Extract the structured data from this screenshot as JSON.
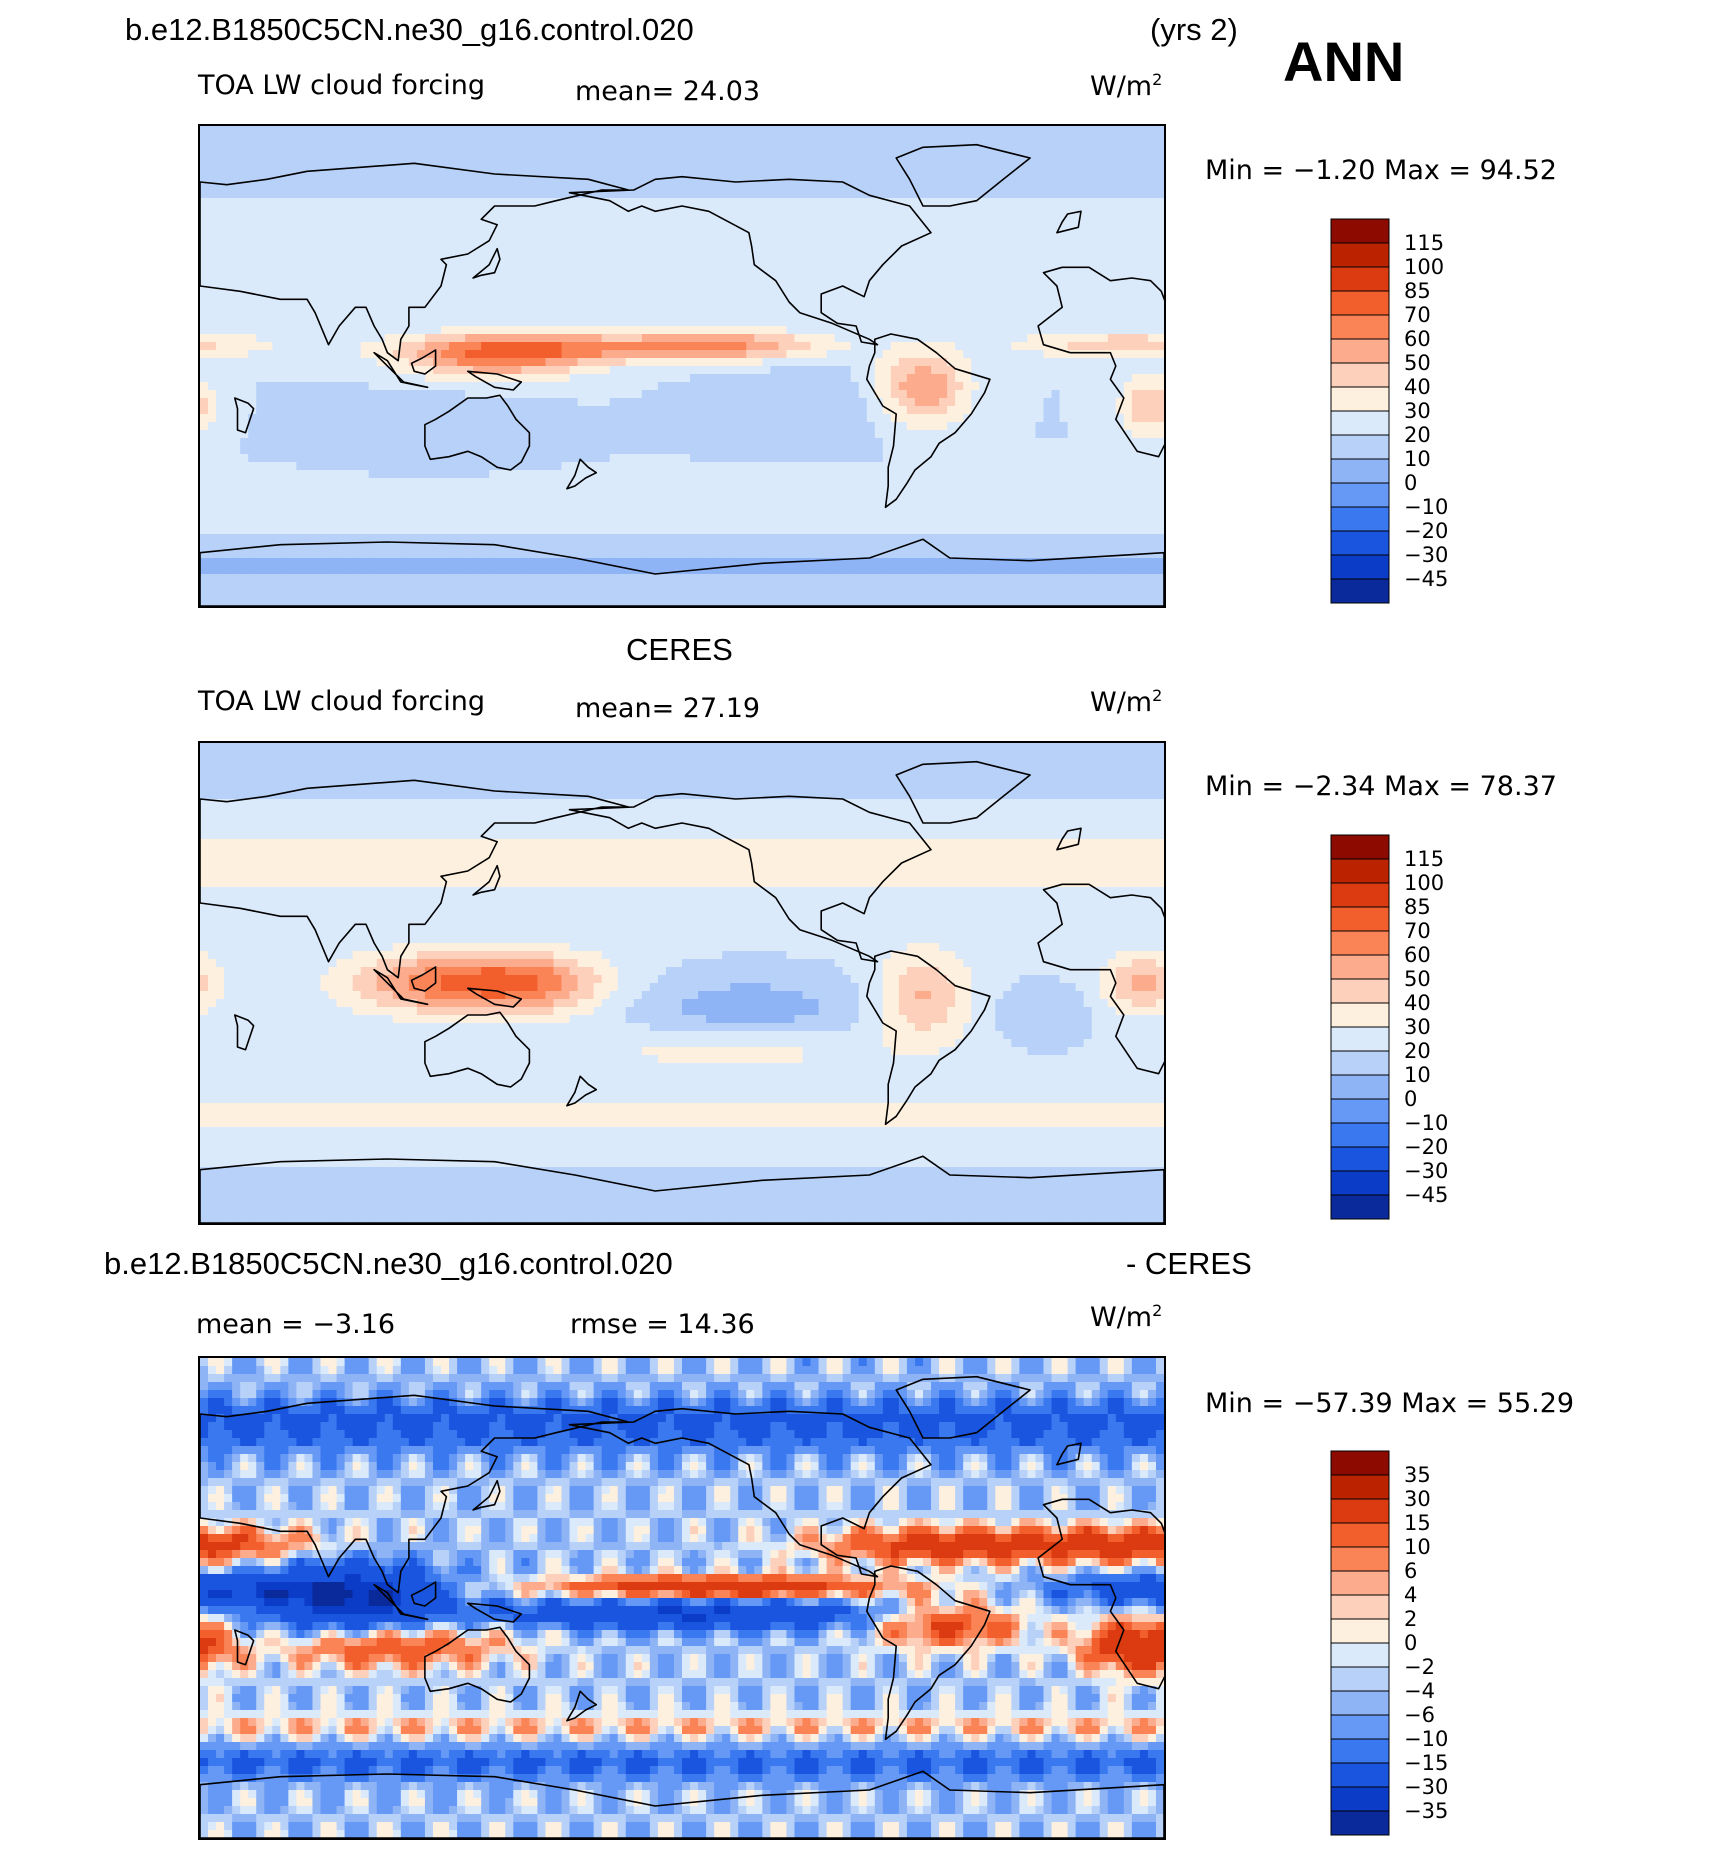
{
  "header": {
    "case_title": "b.e12.B1850C5CN.ne30_g16.control.020",
    "years": "(yrs 2)",
    "season": "ANN"
  },
  "panels": [
    {
      "id": "model",
      "title": "",
      "left_label": "TOA LW cloud forcing",
      "center_label": "mean=  24.03",
      "units": "W/m",
      "units_sup": "2",
      "minmax": "Min =   −1.20 Max =   94.52",
      "levels": [
        "115",
        "100",
        "85",
        "70",
        "60",
        "50",
        "40",
        "30",
        "20",
        "10",
        "0",
        "−10",
        "−20",
        "−30",
        "−45"
      ],
      "colors": [
        "#8c0a00",
        "#bb2300",
        "#dc3a10",
        "#f25e2c",
        "#fb8457",
        "#fcac8d",
        "#fdd0bb",
        "#fef0df",
        "#dbeafb",
        "#b7d1f8",
        "#8fb4f6",
        "#6699f5",
        "#3a78f0",
        "#1a55e0",
        "#0b3cc7",
        "#0a2a9b"
      ]
    },
    {
      "id": "obs",
      "title": "CERES",
      "left_label": "TOA LW cloud forcing",
      "center_label": "mean=  27.19",
      "units": "W/m",
      "units_sup": "2",
      "minmax": "Min =   −2.34 Max =   78.37",
      "levels": [
        "115",
        "100",
        "85",
        "70",
        "60",
        "50",
        "40",
        "30",
        "20",
        "10",
        "0",
        "−10",
        "−20",
        "−30",
        "−45"
      ],
      "colors": [
        "#8c0a00",
        "#bb2300",
        "#dc3a10",
        "#f25e2c",
        "#fb8457",
        "#fcac8d",
        "#fdd0bb",
        "#fef0df",
        "#dbeafb",
        "#b7d1f8",
        "#8fb4f6",
        "#6699f5",
        "#3a78f0",
        "#1a55e0",
        "#0b3cc7",
        "#0a2a9b"
      ]
    },
    {
      "id": "diff",
      "title_left": "b.e12.B1850C5CN.ne30_g16.control.020",
      "title_right": "- CERES",
      "left_label": "mean =   −3.16",
      "center_label": "rmse =   14.36",
      "units": "W/m",
      "units_sup": "2",
      "minmax": "Min = −57.39 Max =   55.29",
      "levels": [
        "35",
        "30",
        "15",
        "10",
        "6",
        "4",
        "2",
        "0",
        "−2",
        "−4",
        "−6",
        "−10",
        "−15",
        "−30",
        "−35"
      ],
      "colors": [
        "#8c0a00",
        "#bb2300",
        "#dc3a10",
        "#f25e2c",
        "#fb8457",
        "#fcac8d",
        "#fdd0bb",
        "#fef0df",
        "#dbeafb",
        "#b7d1f8",
        "#8fb4f6",
        "#6699f5",
        "#3a78f0",
        "#1a55e0",
        "#0b3cc7",
        "#0a2a9b"
      ]
    }
  ]
}
